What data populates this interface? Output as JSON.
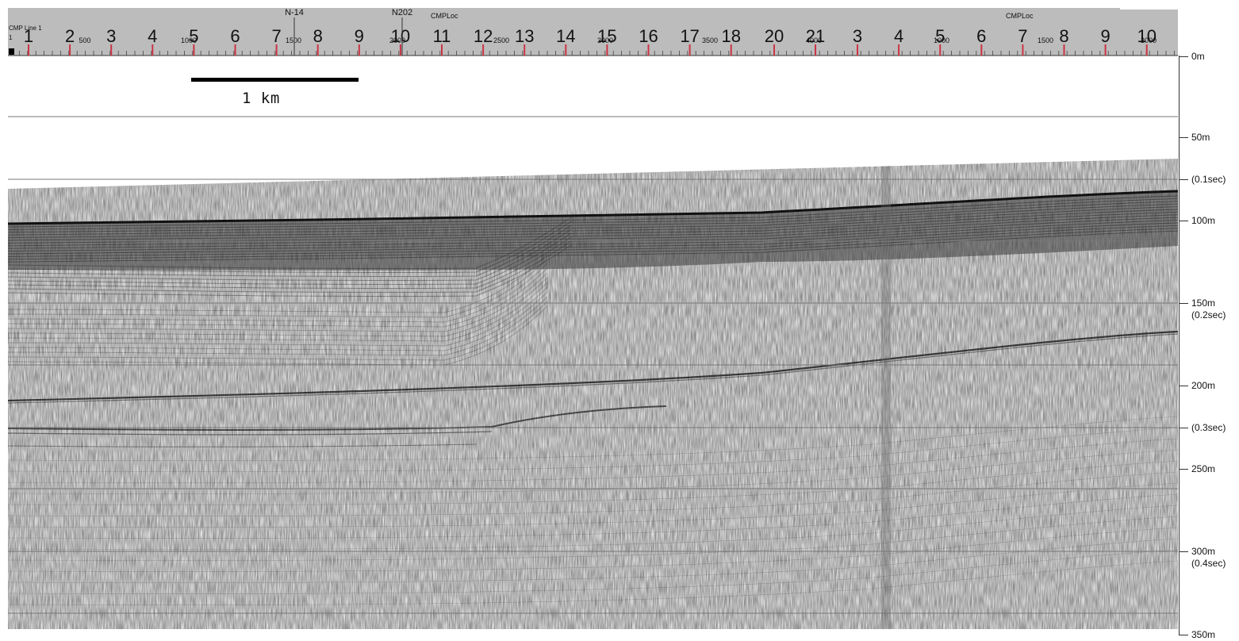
{
  "scale_bar": {
    "label": "1 km"
  },
  "header": {
    "line_label": "CMP Line 1",
    "line_sub": "1",
    "cmp_loc_labels": [
      "CMPLoc",
      "CMPLoc"
    ],
    "crossing_labels": [
      "N-14",
      "N202"
    ],
    "segment_a_numbers": [
      "1",
      "2",
      "3",
      "4",
      "5",
      "6",
      "7",
      "8",
      "9",
      "10",
      "11",
      "12",
      "13",
      "14",
      "15",
      "16",
      "17",
      "18",
      "20",
      "21"
    ],
    "segment_b_numbers": [
      "3",
      "4",
      "5",
      "6",
      "7",
      "8",
      "9",
      "10"
    ],
    "cmp_ticks_a": [
      "500",
      "1000",
      "1500",
      "2000",
      "2500",
      "3000",
      "3500",
      "4000"
    ],
    "cmp_ticks_b": [
      "1000",
      "1500",
      "2000"
    ]
  },
  "depth_axis": [
    {
      "depth": "0m",
      "twt": ""
    },
    {
      "depth": "50m",
      "twt": ""
    },
    {
      "depth": "",
      "twt": "(0.1sec)"
    },
    {
      "depth": "100m",
      "twt": ""
    },
    {
      "depth": "150m",
      "twt": "(0.2sec)"
    },
    {
      "depth": "200m",
      "twt": ""
    },
    {
      "depth": "",
      "twt": "(0.3sec)"
    },
    {
      "depth": "250m",
      "twt": ""
    },
    {
      "depth": "300m",
      "twt": "(0.4sec)"
    },
    {
      "depth": "350m",
      "twt": ""
    }
  ],
  "colors": {
    "header_bg": "#bcbcbc",
    "tick_red": "#cc3344",
    "grid_line": "#777777"
  }
}
